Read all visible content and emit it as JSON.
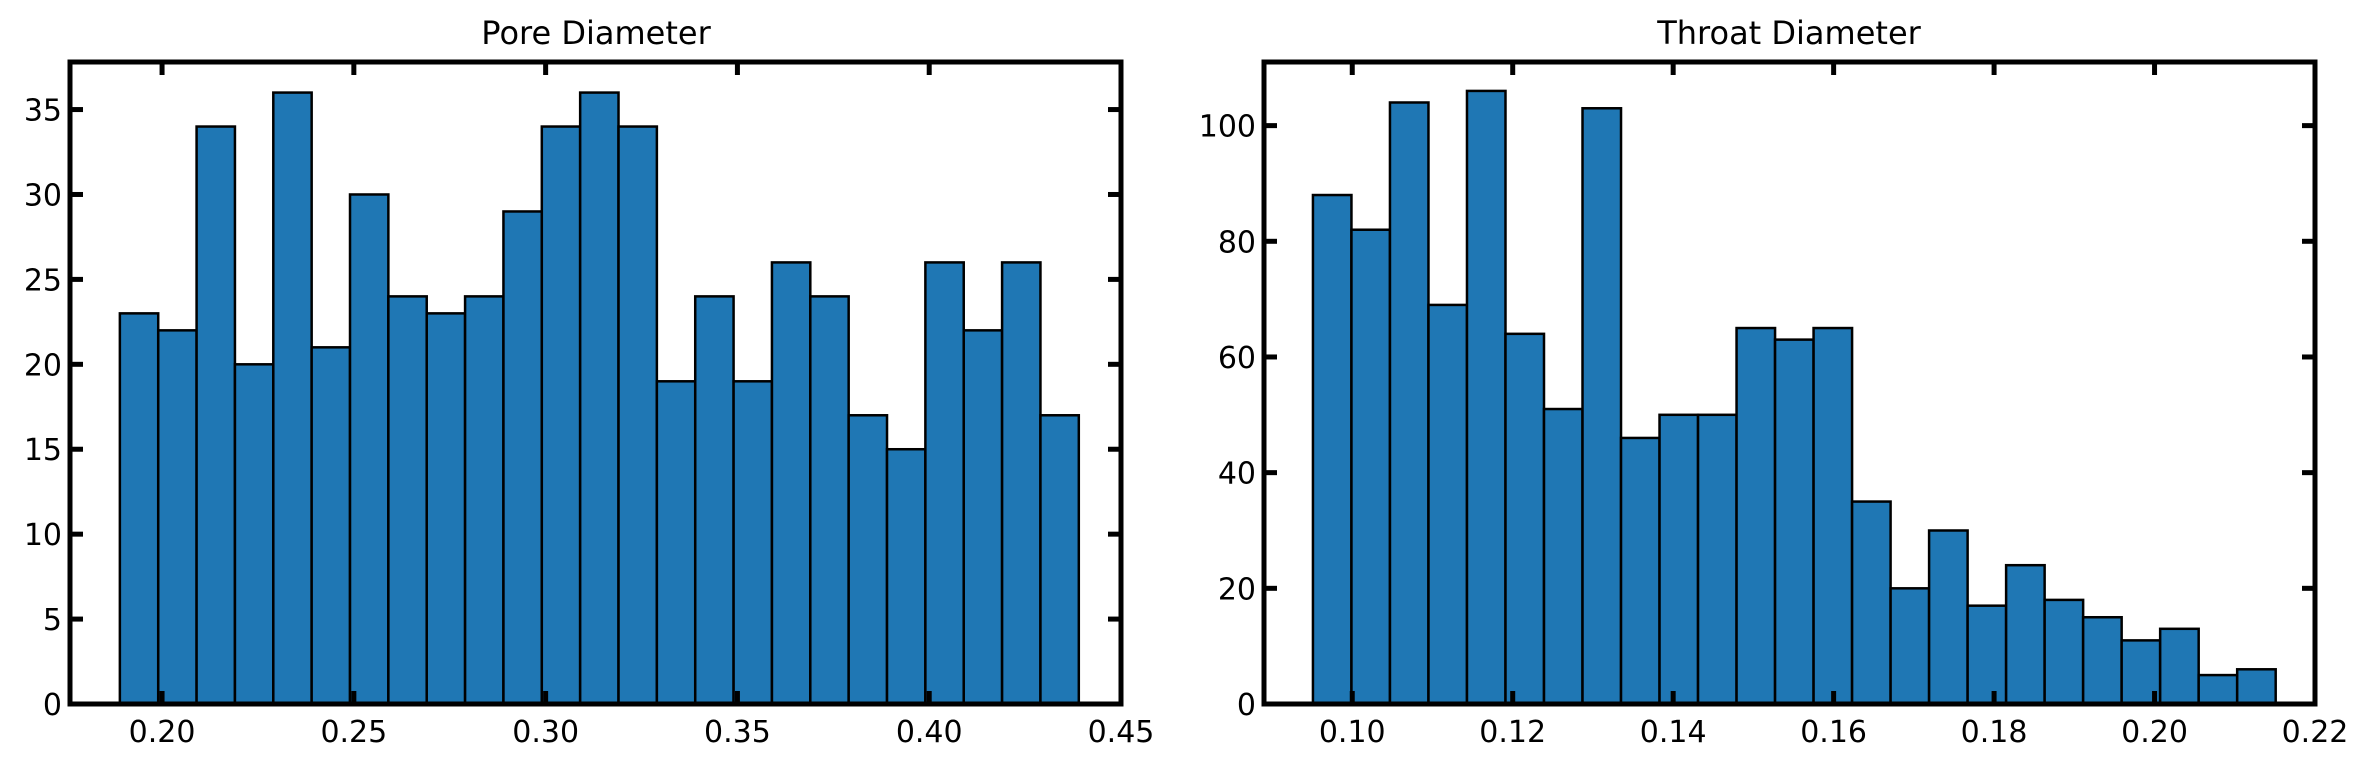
{
  "chart_data": [
    {
      "type": "bar",
      "subtype": "histogram",
      "title": "Pore Diameter",
      "xlabel": "",
      "ylabel": "",
      "xlim": [
        0.176,
        0.45
      ],
      "ylim": [
        0,
        37.8
      ],
      "xticks": [
        "0.20",
        "0.25",
        "0.30",
        "0.35",
        "0.40",
        "0.45"
      ],
      "yticks": [
        "0",
        "5",
        "10",
        "15",
        "20",
        "25",
        "30",
        "35"
      ],
      "bin_start": 0.189,
      "bin_width": 0.01,
      "values": [
        23,
        22,
        34,
        20,
        36,
        21,
        30,
        24,
        23,
        24,
        29,
        34,
        36,
        34,
        19,
        24,
        19,
        26,
        24,
        17,
        15,
        26,
        22,
        26,
        17
      ],
      "bar_color": "#1f77b4",
      "edge_color": "#000000",
      "grid": false,
      "legend": "none"
    },
    {
      "type": "bar",
      "subtype": "histogram",
      "title": "Throat Diameter",
      "xlabel": "",
      "ylabel": "",
      "xlim": [
        0.089,
        0.22
      ],
      "ylim": [
        0,
        111
      ],
      "xticks": [
        "0.10",
        "0.12",
        "0.14",
        "0.16",
        "0.18",
        "0.20",
        "0.22"
      ],
      "yticks": [
        "0",
        "20",
        "40",
        "60",
        "80",
        "100"
      ],
      "bin_start": 0.0951,
      "bin_width": 0.0048,
      "values": [
        88,
        82,
        104,
        69,
        106,
        64,
        51,
        103,
        46,
        50,
        50,
        65,
        63,
        65,
        35,
        20,
        30,
        17,
        24,
        18,
        15,
        11,
        13,
        5,
        6
      ],
      "bar_color": "#1f77b4",
      "edge_color": "#000000",
      "grid": false,
      "legend": "none"
    }
  ]
}
